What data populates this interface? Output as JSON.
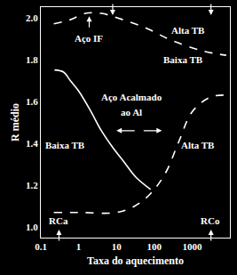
{
  "chart_data": {
    "type": "line",
    "x_label": "Taxa do aquecimento",
    "y_label": "R médio",
    "log": "x",
    "grid": false,
    "xlim": [
      0.1,
      10000
    ],
    "xticks": [
      0.1,
      1,
      10,
      100,
      1000
    ],
    "ylim": [
      0.95,
      2.05
    ],
    "yticks": [
      {
        "value": 1.0,
        "label": "1.0"
      },
      1.2,
      1.4,
      1.6,
      1.8,
      {
        "value": 2.0,
        "label": "2.0"
      }
    ],
    "series": [
      {
        "color": "#ffffff",
        "line_style": "dash",
        "x": [
          0.22,
          0.6,
          1.5,
          4,
          10,
          60,
          300,
          2000,
          8000
        ],
        "values": [
          1.97,
          1.99,
          2.02,
          2.02,
          2.0,
          1.95,
          1.89,
          1.84,
          1.82
        ]
      },
      {
        "color": "#ffffff",
        "line_style": "solid",
        "x": [
          0.23,
          0.4,
          0.6,
          1,
          2,
          4,
          8,
          16,
          32,
          80
        ],
        "values": [
          1.75,
          1.74,
          1.7,
          1.65,
          1.56,
          1.46,
          1.38,
          1.31,
          1.24,
          1.18
        ]
      },
      {
        "color": "#ffffff",
        "line_style": "dash",
        "x": [
          0.22,
          1,
          10,
          30,
          80,
          200,
          450,
          1000,
          3000,
          8000
        ],
        "values": [
          1.07,
          1.07,
          1.07,
          1.1,
          1.16,
          1.26,
          1.41,
          1.55,
          1.62,
          1.63
        ]
      }
    ],
    "annotations": [
      {
        "text": "Alta TB",
        "x": 800,
        "y": 1.94
      },
      {
        "text": "Baixa TB",
        "x": 600,
        "y": 1.8
      },
      {
        "text": "Aço IF",
        "x": 1.9,
        "y": 1.9
      },
      {
        "text": "Aço Acalmado",
        "x": 25,
        "y": 1.62
      },
      {
        "text": "ao Al",
        "x": 25,
        "y": 1.55
      },
      {
        "text": "Baixa TB",
        "x": 0.45,
        "y": 1.39
      },
      {
        "text": "Alta TB",
        "x": 1400,
        "y": 1.39
      },
      {
        "text": "RCa",
        "x": 0.3,
        "y": 1.03
      },
      {
        "text": "RCo",
        "x": 3000,
        "y": 1.03
      }
    ]
  }
}
